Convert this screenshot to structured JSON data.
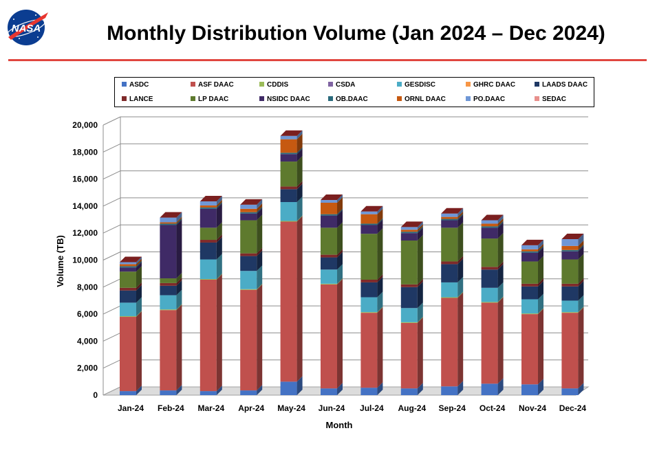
{
  "header": {
    "logo_text": "NASA",
    "title": "Monthly Distribution Volume (Jan 2024 – Dec 2024)"
  },
  "chart_data": {
    "type": "bar",
    "stacked": true,
    "style": "3d",
    "title": "",
    "xlabel": "Month",
    "ylabel": "Volume (TB)",
    "ylim": [
      0,
      20000
    ],
    "yticks": [
      0,
      2000,
      4000,
      6000,
      8000,
      10000,
      12000,
      14000,
      16000,
      18000,
      20000
    ],
    "ytick_labels": [
      "0",
      "2,000",
      "4,000",
      "6,000",
      "8,000",
      "10,000",
      "12,000",
      "14,000",
      "16,000",
      "18,000",
      "20,000"
    ],
    "grid": true,
    "legend_position": "top",
    "categories": [
      "Jan-24",
      "Feb-24",
      "Mar-24",
      "Apr-24",
      "May-24",
      "Jun-24",
      "Jul-24",
      "Aug-24",
      "Sep-24",
      "Oct-24",
      "Nov-24",
      "Dec-24"
    ],
    "series": [
      {
        "name": "ASDC",
        "color": "#4472c4",
        "values": [
          300,
          350,
          300,
          350,
          1000,
          500,
          550,
          500,
          650,
          850,
          800,
          500
        ]
      },
      {
        "name": "ASF DAAC",
        "color": "#c0504d",
        "values": [
          5500,
          5950,
          8250,
          7450,
          11850,
          7700,
          5550,
          4850,
          6550,
          6000,
          5200,
          5600
        ]
      },
      {
        "name": "CDDIS",
        "color": "#9bbb59",
        "values": [
          50,
          50,
          50,
          50,
          50,
          50,
          50,
          50,
          50,
          50,
          50,
          50
        ]
      },
      {
        "name": "CSDA",
        "color": "#8064a2",
        "values": [
          0,
          0,
          0,
          0,
          0,
          0,
          0,
          0,
          0,
          0,
          0,
          0
        ]
      },
      {
        "name": "GESDISC",
        "color": "#4bacc6",
        "values": [
          1000,
          1050,
          1450,
          1350,
          1400,
          1050,
          1100,
          1050,
          1100,
          1050,
          1050,
          850
        ]
      },
      {
        "name": "GHRC DAAC",
        "color": "#f79646",
        "values": [
          0,
          0,
          0,
          0,
          0,
          0,
          0,
          0,
          0,
          0,
          0,
          0
        ]
      },
      {
        "name": "LAADS DAAC",
        "color": "#1f3864",
        "values": [
          900,
          700,
          1250,
          1100,
          950,
          900,
          1100,
          1550,
          1350,
          1350,
          950,
          1050
        ]
      },
      {
        "name": "LANCE",
        "color": "#7f2a2a",
        "values": [
          200,
          200,
          200,
          200,
          200,
          200,
          200,
          200,
          200,
          200,
          200,
          200
        ]
      },
      {
        "name": "LP DAAC",
        "color": "#5e7a2e",
        "values": [
          1200,
          350,
          900,
          2450,
          1850,
          2000,
          3400,
          3250,
          2500,
          2100,
          1650,
          1800
        ]
      },
      {
        "name": "NSIDC DAAC",
        "color": "#3f2a66",
        "values": [
          300,
          3950,
          1400,
          500,
          550,
          900,
          650,
          550,
          550,
          800,
          650,
          600
        ]
      },
      {
        "name": "OB.DAAC",
        "color": "#2a6a7c",
        "values": [
          100,
          100,
          100,
          100,
          100,
          100,
          100,
          100,
          100,
          100,
          100,
          100
        ]
      },
      {
        "name": "ORNL DAAC",
        "color": "#c65911",
        "values": [
          150,
          100,
          150,
          250,
          1000,
          850,
          700,
          150,
          150,
          200,
          150,
          300
        ]
      },
      {
        "name": "PO.DAAC",
        "color": "#6f97d6",
        "values": [
          150,
          350,
          300,
          300,
          250,
          200,
          200,
          200,
          250,
          250,
          300,
          500
        ]
      },
      {
        "name": "SEDAC",
        "color": "#e8908c",
        "values": [
          0,
          0,
          0,
          0,
          0,
          0,
          0,
          0,
          0,
          0,
          0,
          0
        ]
      }
    ]
  }
}
